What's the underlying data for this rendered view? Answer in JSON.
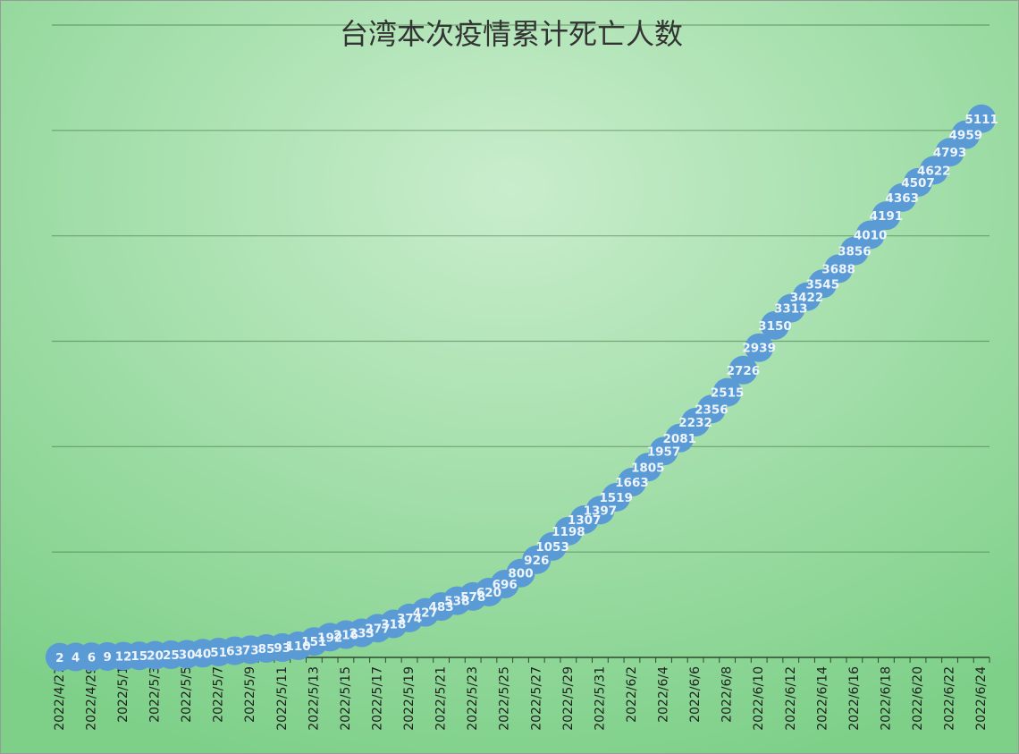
{
  "chart_data": {
    "type": "line",
    "title": "台湾本次疫情累计死亡人数",
    "categories": [
      "2022/4/27",
      null,
      "2022/4/29",
      null,
      "2022/5/1",
      null,
      "2022/5/3",
      null,
      "2022/5/5",
      null,
      "2022/5/7",
      null,
      "2022/5/9",
      null,
      "2022/5/11",
      null,
      "2022/5/13",
      null,
      "2022/5/15",
      null,
      "2022/5/17",
      null,
      "2022/5/19",
      null,
      "2022/5/21",
      null,
      "2022/5/23",
      null,
      "2022/5/25",
      null,
      "2022/5/27",
      null,
      "2022/5/29",
      null,
      "2022/5/31",
      null,
      "2022/6/2",
      null,
      "2022/6/4",
      null,
      "2022/6/6",
      null,
      "2022/6/8",
      null,
      "2022/6/10",
      null,
      "2022/6/12",
      null,
      "2022/6/14",
      null,
      "2022/6/16",
      null,
      "2022/6/18",
      null,
      "2022/6/20",
      null,
      "2022/6/22",
      null,
      "2022/6/24"
    ],
    "values": [
      2,
      4,
      6,
      9,
      12,
      15,
      20,
      25,
      30,
      40,
      51,
      63,
      73,
      85,
      93,
      110,
      151,
      192,
      216,
      233,
      277,
      318,
      374,
      427,
      483,
      538,
      578,
      620,
      696,
      800,
      926,
      1053,
      1198,
      1307,
      1397,
      1519,
      1663,
      1805,
      1957,
      2081,
      2232,
      2356,
      2515,
      2726,
      2939,
      3150,
      3313,
      3422,
      3545,
      3688,
      3856,
      4010,
      4191,
      4363,
      4507,
      4622,
      4793,
      4959,
      5111
    ],
    "color": "#5b9bd5",
    "label_color": "#eef4fb",
    "ylim": [
      0,
      6000
    ],
    "yticks": [
      0,
      1000,
      2000,
      3000,
      4000,
      5000,
      6000
    ],
    "grid": true
  }
}
